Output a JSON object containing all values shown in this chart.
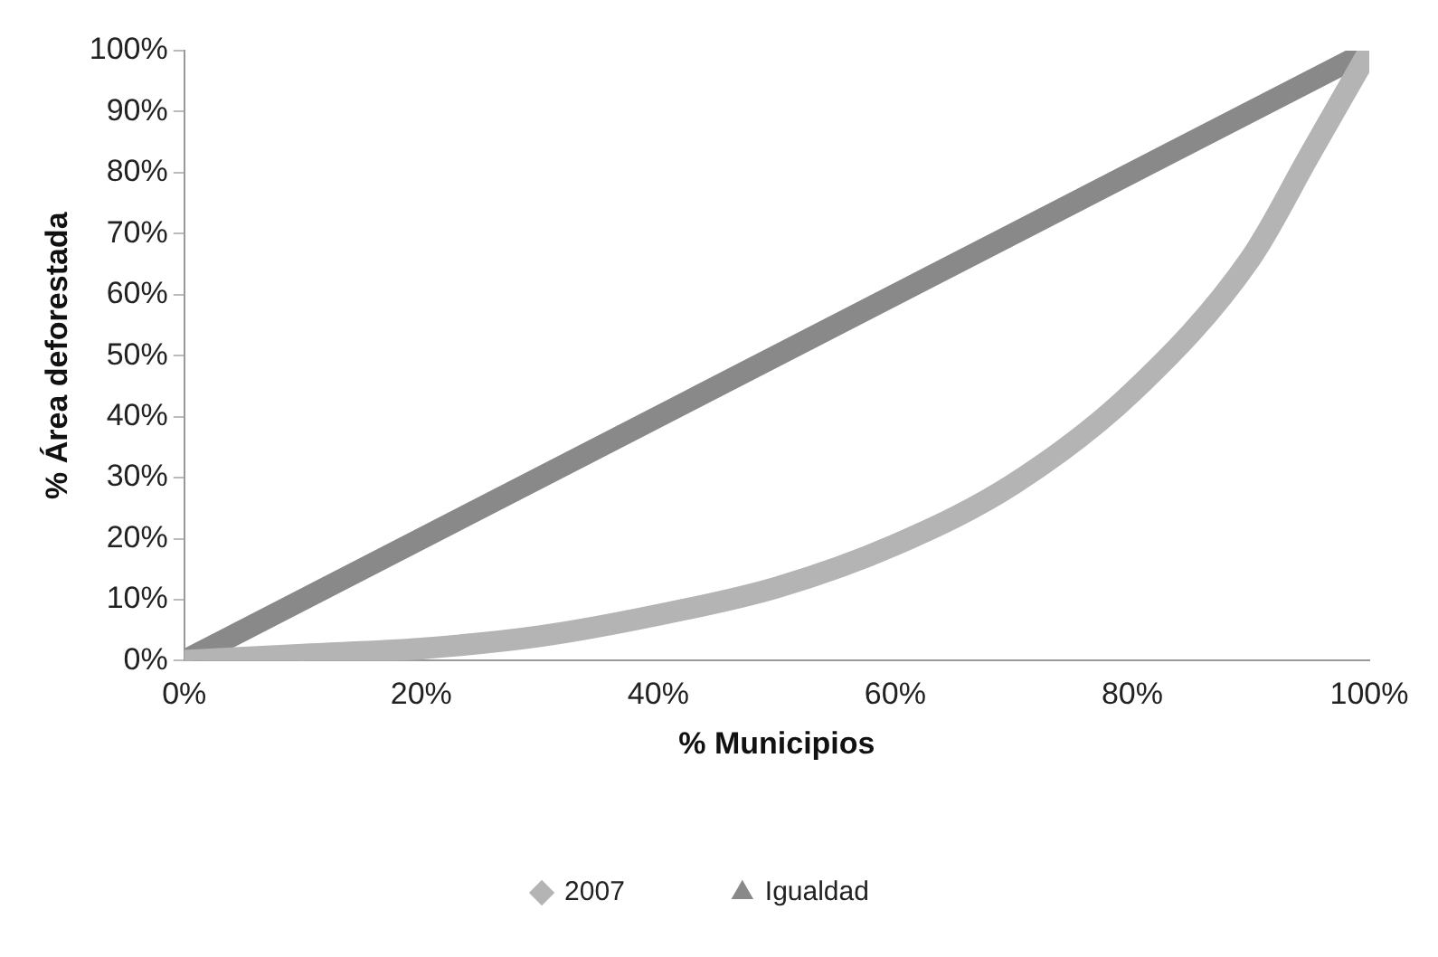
{
  "chart_data": {
    "type": "line",
    "xlabel": "% Municipios",
    "ylabel": "% Área deforestada",
    "legend": "bottom",
    "grid": false,
    "xlim": [
      0,
      100
    ],
    "xticks": [
      {
        "value": 0,
        "label": "0%"
      },
      {
        "value": 20,
        "label": "20%"
      },
      {
        "value": 40,
        "label": "40%"
      },
      {
        "value": 60,
        "label": "60%"
      },
      {
        "value": 80,
        "label": "80%"
      },
      {
        "value": 100,
        "label": "100%"
      }
    ],
    "ylim": [
      0,
      100
    ],
    "yticks": [
      {
        "value": 0,
        "label": "0%"
      },
      {
        "value": 10,
        "label": "10%"
      },
      {
        "value": 20,
        "label": "20%"
      },
      {
        "value": 30,
        "label": "30%"
      },
      {
        "value": 40,
        "label": "40%"
      },
      {
        "value": 50,
        "label": "50%"
      },
      {
        "value": 60,
        "label": "60%"
      },
      {
        "value": 70,
        "label": "70%"
      },
      {
        "value": 80,
        "label": "80%"
      },
      {
        "value": 90,
        "label": "90%"
      },
      {
        "value": 100,
        "label": "100%"
      }
    ],
    "series": [
      {
        "name": "2007",
        "color": "#b4b4b4",
        "marker": "diamond",
        "x": [
          0,
          10,
          20,
          30,
          40,
          50,
          60,
          70,
          80,
          90,
          95,
          100
        ],
        "values": [
          0,
          1,
          2,
          4,
          7.5,
          12,
          19,
          29,
          44,
          66,
          83,
          100
        ]
      },
      {
        "name": "Igualdad",
        "color": "#898989",
        "marker": "triangle",
        "x": [
          0,
          100
        ],
        "values": [
          0,
          100
        ]
      }
    ]
  }
}
